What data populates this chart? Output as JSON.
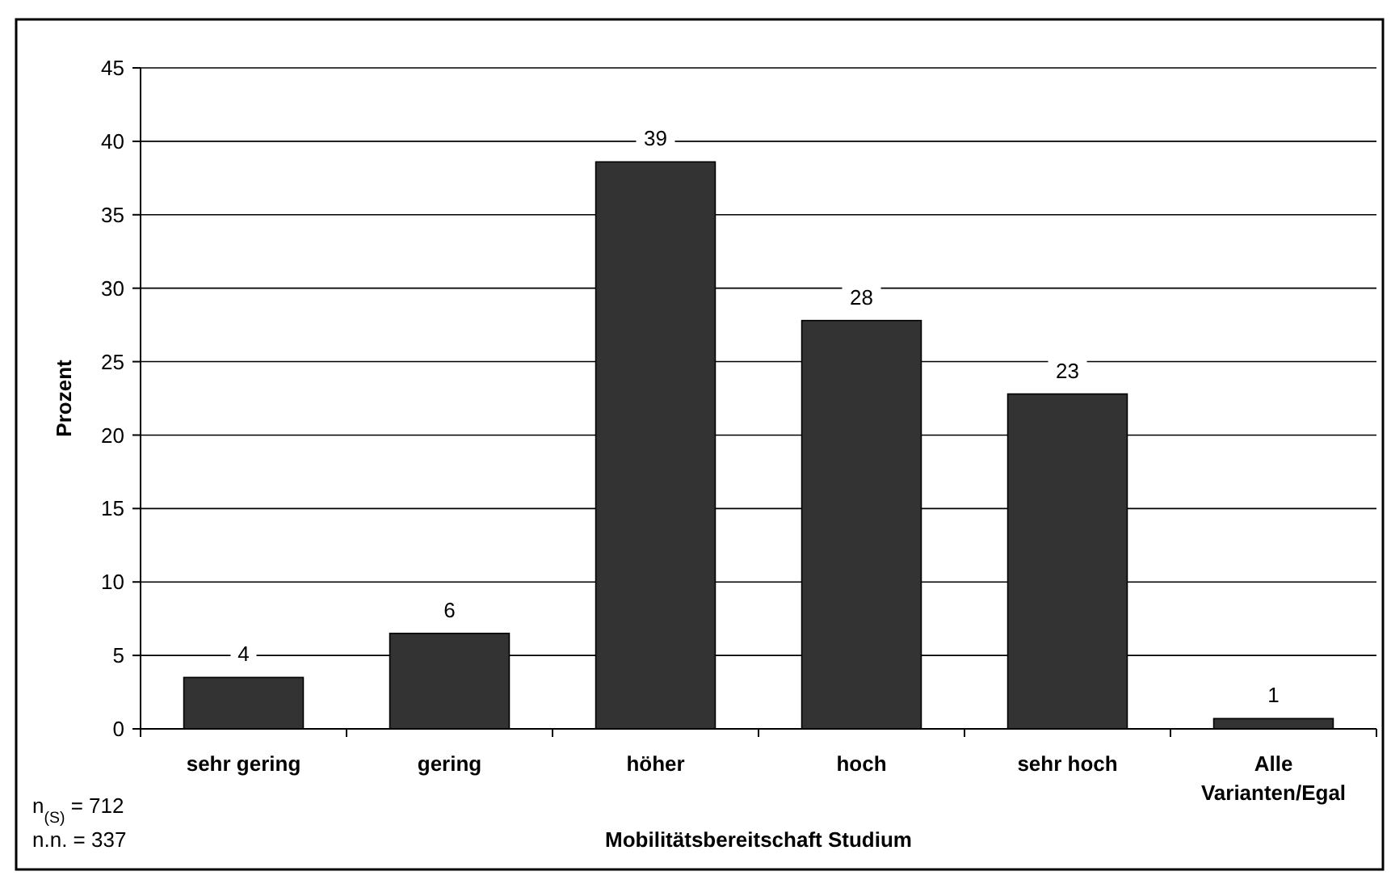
{
  "chart_data": {
    "type": "bar",
    "xlabel": "Mobilitätsbereitschaft Studium",
    "ylabel": "Prozent",
    "categories": [
      "sehr gering",
      "gering",
      "höher",
      "hoch",
      "sehr hoch",
      "Alle Varianten/Egal"
    ],
    "values": [
      3.5,
      6.5,
      38.6,
      27.8,
      22.8,
      0.7
    ],
    "value_labels": [
      "4",
      "6",
      "39",
      "28",
      "23",
      "1"
    ],
    "color": "#333333",
    "ylim": [
      0,
      45
    ],
    "yticks": [
      0,
      5,
      10,
      15,
      20,
      25,
      30,
      35,
      40,
      45
    ],
    "grid": "y",
    "annotations": [
      "n$_{(S)}$ = 712",
      "n.n. = 337"
    ]
  }
}
